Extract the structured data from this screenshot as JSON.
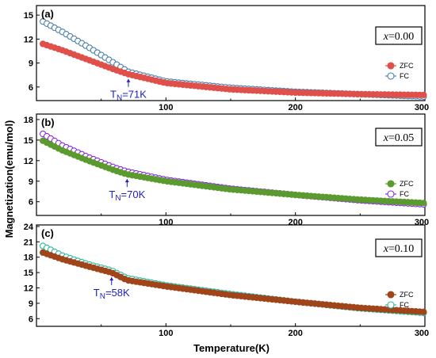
{
  "chart_data": {
    "type": "scatter",
    "xlabel": "Temperature(K)",
    "ylabel": "Magnetization(emu/mol)",
    "xlim": [
      0,
      300
    ],
    "x_ticks": [
      "100",
      "200",
      "300"
    ],
    "grid": false,
    "legend_position": "right",
    "panels": [
      {
        "label": "(a)",
        "composition_var": "x",
        "composition_value": "=0.00",
        "annotation": {
          "prefix": "T",
          "sub": "N",
          "suffix": "=71K",
          "temperature": 71
        },
        "ylim": [
          4.3,
          16.2
        ],
        "y_ticks": [
          6,
          9,
          12,
          15
        ],
        "series": [
          {
            "name": "ZFC",
            "color": "#e0504a",
            "fill": "#e0504a",
            "points": [
              [
                5,
                11.4
              ],
              [
                20,
                10.6
              ],
              [
                40,
                9.4
              ],
              [
                60,
                8.2
              ],
              [
                71,
                7.6
              ],
              [
                100,
                6.5
              ],
              [
                150,
                5.7
              ],
              [
                200,
                5.3
              ],
              [
                250,
                5.1
              ],
              [
                300,
                5.0
              ]
            ]
          },
          {
            "name": "FC",
            "color": "#4a7fae",
            "fill": "#ffffff",
            "points": [
              [
                5,
                14.2
              ],
              [
                20,
                12.9
              ],
              [
                40,
                11.0
              ],
              [
                60,
                9.0
              ],
              [
                71,
                7.9
              ],
              [
                100,
                6.7
              ],
              [
                150,
                5.9
              ],
              [
                200,
                5.4
              ],
              [
                250,
                5.1
              ],
              [
                300,
                4.8
              ]
            ]
          }
        ]
      },
      {
        "label": "(b)",
        "composition_var": "x",
        "composition_value": "=0.05",
        "annotation": {
          "prefix": "T",
          "sub": "N",
          "suffix": "=70K",
          "temperature": 70
        },
        "ylim": [
          4.0,
          18.8
        ],
        "y_ticks": [
          6,
          9,
          12,
          15,
          18
        ],
        "series": [
          {
            "name": "ZFC",
            "color": "#5b9a2e",
            "fill": "#5b9a2e",
            "points": [
              [
                5,
                14.9
              ],
              [
                20,
                13.5
              ],
              [
                40,
                12.0
              ],
              [
                60,
                10.6
              ],
              [
                70,
                10.0
              ],
              [
                100,
                9.0
              ],
              [
                150,
                7.8
              ],
              [
                200,
                7.0
              ],
              [
                250,
                6.3
              ],
              [
                300,
                5.8
              ]
            ]
          },
          {
            "name": "FC",
            "color": "#8a2be2",
            "fill": "#ffffff",
            "points": [
              [
                5,
                15.9
              ],
              [
                20,
                14.2
              ],
              [
                40,
                12.5
              ],
              [
                60,
                11.0
              ],
              [
                70,
                10.4
              ],
              [
                100,
                9.2
              ],
              [
                150,
                7.9
              ],
              [
                200,
                7.0
              ],
              [
                250,
                6.2
              ],
              [
                300,
                5.6
              ]
            ]
          }
        ]
      },
      {
        "label": "(c)",
        "composition_var": "x",
        "composition_value": "=0.10",
        "annotation": {
          "prefix": "T",
          "sub": "N",
          "suffix": "=58K",
          "temperature": 58
        },
        "ylim": [
          4.5,
          24.3
        ],
        "y_ticks": [
          6,
          9,
          12,
          15,
          18,
          21,
          24
        ],
        "series": [
          {
            "name": "ZFC",
            "color": "#a0451a",
            "fill": "#a0451a",
            "points": [
              [
                5,
                18.9
              ],
              [
                20,
                17.6
              ],
              [
                40,
                16.2
              ],
              [
                58,
                15.0
              ],
              [
                70,
                13.5
              ],
              [
                100,
                12.3
              ],
              [
                150,
                10.6
              ],
              [
                200,
                9.3
              ],
              [
                250,
                8.1
              ],
              [
                300,
                7.3
              ]
            ]
          },
          {
            "name": "FC",
            "color": "#2cb9a0",
            "fill": "#ffffff",
            "points": [
              [
                5,
                20.2
              ],
              [
                20,
                18.3
              ],
              [
                40,
                16.6
              ],
              [
                58,
                15.4
              ],
              [
                70,
                13.9
              ],
              [
                100,
                12.5
              ],
              [
                150,
                10.8
              ],
              [
                200,
                9.3
              ],
              [
                250,
                8.0
              ],
              [
                300,
                7.1
              ]
            ]
          }
        ]
      }
    ]
  }
}
